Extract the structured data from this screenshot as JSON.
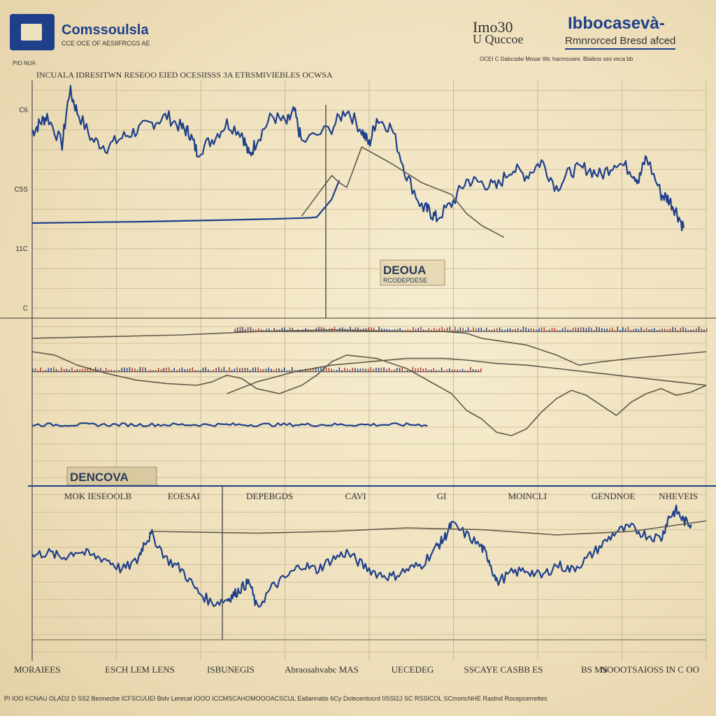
{
  "header": {
    "brand_name": "Comssoulsla",
    "brand_tag": "CCE OCE OF AESIIFRCGS AE",
    "corner_label": "PIO NUA",
    "left_title_1": "Imo30",
    "left_title_2": "U Quccoe",
    "right_title_1": "Ibbocasevà-",
    "right_title_2": "Rmnrorced Bresd afced",
    "right_caption": "OCEI C Dabcodw Mosar Iitlc hacmsoare. Blaibos ses veca bb"
  },
  "subtitle": "INCUALA IDRESITWN RESEOO EIED  OCESIISSS 3A  ETRSMIVIEBLES OCWSA",
  "bottom_caption": "PI IOO KCNAU OLAD2 D SS2 Beonecbe ICFSCUUEI Bidv Lerecat IOOO ICCMSCAHOMOOOACSCUL Eatlannatis 6Cy Dolecentocrd  0SSI2J SC RSSICOL SCmoricNHE Rastnd Rocepcerrettes",
  "colors": {
    "primary_blue": "#1e3f8a",
    "gray_line": "#5e5a4a",
    "background": "#efe1bd",
    "red_bars": "#b03a2e",
    "grid": "#c8b994"
  },
  "chart_data": [
    {
      "type": "line",
      "panel": "top",
      "title": "",
      "xlabel": "",
      "ylabel": "",
      "ylim": [
        0,
        100
      ],
      "xlim": [
        0,
        90
      ],
      "y_ticks": [
        "",
        "C6",
        "",
        "",
        "",
        "C5S",
        "",
        "",
        "11C",
        "",
        "",
        "C"
      ],
      "x_tick_labels": [],
      "annotation": {
        "text": "DEOUA",
        "sub": "RCODEPDESE"
      },
      "series": [
        {
          "name": "",
          "color": "#1e3f8a",
          "x": [
            0,
            1,
            2,
            4,
            5,
            6,
            8,
            10,
            12,
            14,
            16,
            18,
            20,
            21,
            22,
            24,
            26,
            28,
            29,
            30,
            32,
            34,
            35,
            36,
            40,
            42,
            44,
            45,
            46,
            48,
            50,
            52,
            53,
            54,
            56,
            58,
            60,
            62,
            64,
            66,
            68,
            70,
            72,
            74,
            76,
            78,
            80,
            81,
            82,
            84,
            85,
            86,
            87
          ],
          "y": [
            78,
            82,
            85,
            73,
            96,
            87,
            75,
            72,
            76,
            79,
            82,
            85,
            80,
            78,
            70,
            75,
            82,
            78,
            68,
            75,
            85,
            82,
            87,
            74,
            80,
            88,
            79,
            73,
            84,
            80,
            60,
            47,
            45,
            42,
            48,
            58,
            57,
            55,
            63,
            60,
            66,
            55,
            62,
            63,
            60,
            66,
            62,
            58,
            68,
            52,
            50,
            45,
            38
          ]
        },
        {
          "name": "",
          "color": "#1e3f8a",
          "x": [
            0,
            5,
            10,
            15,
            20,
            25,
            30,
            33,
            35,
            37,
            38,
            40,
            41
          ],
          "y": [
            40,
            40.2,
            40.4,
            40.6,
            40.9,
            41.2,
            41.6,
            41.8,
            42,
            42.2,
            42.5,
            50,
            58
          ]
        },
        {
          "name": "",
          "color": "#5e5a4a",
          "x": [
            36,
            40,
            41,
            42,
            44,
            48,
            52,
            56,
            58,
            60,
            63
          ],
          "y": [
            43,
            60,
            57,
            55,
            72,
            65,
            57,
            52,
            44,
            39,
            34
          ]
        }
      ]
    },
    {
      "type": "line",
      "panel": "middle",
      "title": "",
      "xlabel": "",
      "ylabel": "",
      "ylim": [
        0,
        100
      ],
      "xlim": [
        0,
        90
      ],
      "y_ticks": [
        "",
        "",
        "",
        "",
        "",
        "",
        "",
        "",
        "",
        ""
      ],
      "x_tick_labels": [],
      "annotation": {
        "text": "DENCOVA",
        "sub": ""
      },
      "series": [
        {
          "name": "",
          "color": "#5e5a4a",
          "x": [
            0,
            3,
            6,
            10,
            14,
            18,
            22,
            24,
            26,
            28,
            30,
            33,
            36,
            38,
            40,
            42,
            46,
            50,
            52,
            54,
            56,
            58,
            60,
            62,
            64,
            66,
            68,
            70,
            72,
            74,
            76,
            78,
            80,
            82,
            84,
            86,
            88,
            90
          ],
          "y": [
            80,
            78,
            72,
            67,
            63,
            61,
            60,
            62,
            66,
            64,
            58,
            55,
            60,
            66,
            74,
            78,
            76,
            70,
            65,
            60,
            55,
            45,
            40,
            32,
            30,
            34,
            44,
            52,
            57,
            54,
            48,
            42,
            50,
            55,
            58,
            54,
            56,
            60
          ]
        },
        {
          "name": "",
          "color": "#5e5a4a",
          "x": [
            0,
            10,
            20,
            30,
            40,
            50,
            55,
            58,
            60,
            63,
            66,
            70,
            73,
            76,
            80,
            85,
            90
          ],
          "y": [
            88,
            89,
            90,
            92,
            93,
            92,
            92,
            91,
            88,
            86,
            84,
            78,
            72,
            74,
            76,
            78,
            80
          ]
        },
        {
          "name": "",
          "color": "#5e5a4a",
          "x": [
            26,
            30,
            35,
            40,
            45,
            50,
            55,
            58,
            62,
            66,
            70,
            74,
            78,
            82,
            86,
            90
          ],
          "y": [
            55,
            62,
            68,
            72,
            74,
            76,
            76,
            75,
            73,
            72,
            70,
            68,
            66,
            64,
            62,
            60
          ]
        },
        {
          "name": "",
          "color": "#1e3f8a",
          "x": [
            0,
            5,
            10,
            15,
            20,
            25,
            30,
            35,
            40,
            45,
            50,
            53
          ],
          "y": 36.5
        }
      ],
      "band_1": {
        "y": 92,
        "x_start": 27,
        "x_end": 90
      },
      "band_2": {
        "y": 68,
        "x_start": 0,
        "x_end": 60
      }
    },
    {
      "type": "line",
      "panel": "bottom",
      "title": "",
      "xlabel": "",
      "ylabel": "",
      "ylim": [
        0,
        100
      ],
      "xlim": [
        0,
        90
      ],
      "y_ticks": [
        "",
        "",
        "",
        "",
        "",
        "",
        "",
        "",
        "",
        ""
      ],
      "x_tick_labels": [
        "MOK IESEOOLB",
        "EOESAI",
        "DEPEBGDS",
        "CAVI",
        "GI",
        "MOINCLI",
        "GENDNOE",
        "NHEVEIS"
      ],
      "bottom_axis_labels": [
        "MORAIEES",
        "ESCH LEM LENS",
        "ISBUNEGIS",
        "Abraosahvabc MAS",
        "UECEDEG",
        "SSCAYE CASBB ES",
        "BS MS",
        "NOOOTSAIOSS IN C OO"
      ],
      "series": [
        {
          "name": "",
          "color": "#1e3f8a",
          "x": [
            0,
            2,
            4,
            6,
            8,
            10,
            12,
            14,
            15,
            16,
            18,
            20,
            22,
            24,
            26,
            27,
            28,
            29,
            30,
            32,
            34,
            36,
            38,
            40,
            42,
            44,
            46,
            48,
            50,
            52,
            54,
            55,
            56,
            58,
            60,
            61,
            62,
            64,
            66,
            68,
            70,
            72,
            74,
            76,
            78,
            80,
            82,
            84,
            85,
            86,
            87,
            88
          ],
          "y": [
            60,
            62,
            59,
            63,
            60,
            58,
            52,
            57,
            68,
            72,
            58,
            52,
            40,
            33,
            35,
            38,
            42,
            45,
            30,
            42,
            48,
            55,
            52,
            58,
            62,
            55,
            50,
            48,
            52,
            55,
            65,
            70,
            78,
            72,
            65,
            58,
            45,
            50,
            52,
            48,
            55,
            52,
            58,
            66,
            74,
            76,
            72,
            70,
            82,
            86,
            80,
            78
          ]
        },
        {
          "name": "",
          "color": "#5e5a4a",
          "x": [
            16,
            30,
            40,
            50,
            60,
            70,
            80,
            90
          ],
          "y": [
            74,
            73,
            74,
            76,
            75,
            72,
            74,
            80
          ]
        }
      ]
    }
  ]
}
